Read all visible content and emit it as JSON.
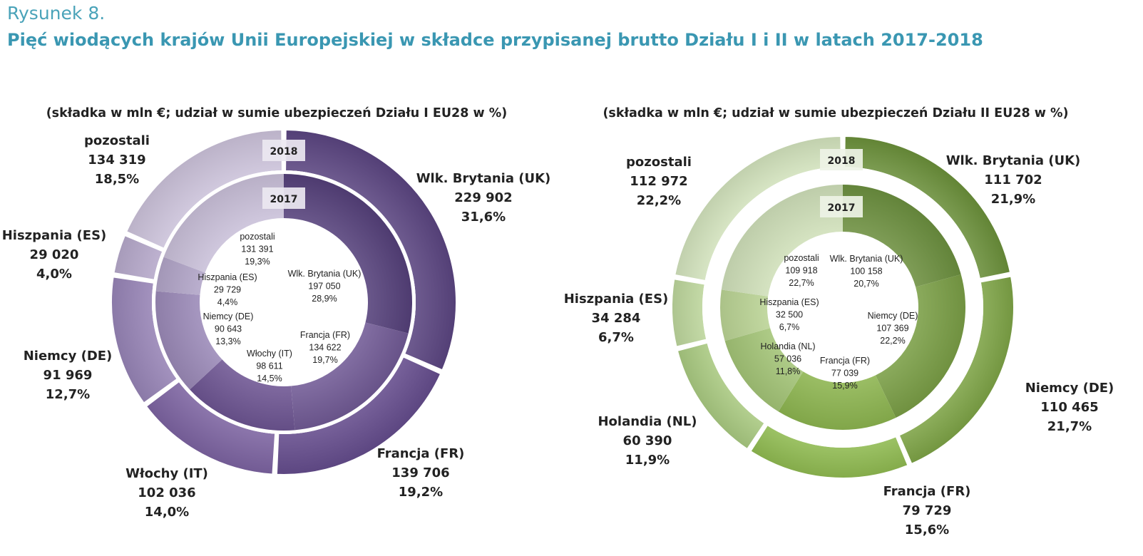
{
  "figure": {
    "label": "Rysunek 8.",
    "title": "Pięć wiodących krajów Unii Europejskiej w składce przypisanej brutto Działu I i II w latach 2017-2018"
  },
  "chart_data": [
    {
      "type": "pie",
      "subtitle": "(składka w mln €; udział w sumie ubezpieczeń Działu I EU28 w %)",
      "rings": [
        {
          "year": "2018",
          "ring": "outer",
          "slices": [
            {
              "name": "Wlk. Brytania (UK)",
              "value": "229 902",
              "share": "31,6%",
              "color": "#5a4580"
            },
            {
              "name": "Francja (FR)",
              "value": "139 706",
              "share": "19,2%",
              "color": "#644c8c"
            },
            {
              "name": "Włochy (IT)",
              "value": "102 036",
              "share": "14,0%",
              "color": "#7c63a1"
            },
            {
              "name": "Niemcy (DE)",
              "value": "91 969",
              "share": "12,7%",
              "color": "#9683b5"
            },
            {
              "name": "Hiszpania (ES)",
              "value": "29 020",
              "share": "4,0%",
              "color": "#b5a8ca"
            },
            {
              "name": "pozostali",
              "value": "134 319",
              "share": "18,5%",
              "color": "#cbc2d9"
            }
          ]
        },
        {
          "year": "2017",
          "ring": "inner",
          "slices": [
            {
              "name": "Wlk. Brytania (UK)",
              "value": "197 050",
              "share": "28,9%",
              "color": "#55407a"
            },
            {
              "name": "Francja (FR)",
              "value": "134 622",
              "share": "19,7%",
              "color": "#715a95"
            },
            {
              "name": "Włochy (IT)",
              "value": "98 611",
              "share": "14,5%",
              "color": "#6d5592"
            },
            {
              "name": "Niemcy (DE)",
              "value": "90 643",
              "share": "13,3%",
              "color": "#9a89b7"
            },
            {
              "name": "Hiszpania (ES)",
              "value": "29 729",
              "share": "4,4%",
              "color": "#b1a4c7"
            },
            {
              "name": "pozostali",
              "value": "131 391",
              "share": "19,3%",
              "color": "#c9bfd8"
            }
          ]
        }
      ]
    },
    {
      "type": "pie",
      "subtitle": "(składka w mln €; udział w sumie ubezpieczeń Działu II EU28 w %)",
      "rings": [
        {
          "year": "2018",
          "ring": "outer",
          "slices": [
            {
              "name": "Wlk. Brytania (UK)",
              "value": "111 702",
              "share": "21,9%",
              "color": "#6a8f3a"
            },
            {
              "name": "Niemcy (DE)",
              "value": "110 465",
              "share": "21,7%",
              "color": "#7da346"
            },
            {
              "name": "Francja (FR)",
              "value": "79 729",
              "share": "15,6%",
              "color": "#8fba50"
            },
            {
              "name": "Holandia (NL)",
              "value": "60 390",
              "share": "11,9%",
              "color": "#a9c980"
            },
            {
              "name": "Hiszpania (ES)",
              "value": "34 284",
              "share": "6,7%",
              "color": "#bcd59b"
            },
            {
              "name": "pozostali",
              "value": "112 972",
              "share": "22,2%",
              "color": "#d2e2bc"
            }
          ]
        },
        {
          "year": "2017",
          "ring": "inner",
          "slices": [
            {
              "name": "Wlk. Brytania (UK)",
              "value": "100 158",
              "share": "20,7%",
              "color": "#6c8f3f"
            },
            {
              "name": "Niemcy (DE)",
              "value": "107 369",
              "share": "22,2%",
              "color": "#7a9e46"
            },
            {
              "name": "Francja (FR)",
              "value": "77 039",
              "share": "15,9%",
              "color": "#8cb44f"
            },
            {
              "name": "Holandia (NL)",
              "value": "57 036",
              "share": "11,8%",
              "color": "#a3c477"
            },
            {
              "name": "Hiszpania (ES)",
              "value": "32 500",
              "share": "6,7%",
              "color": "#bad394"
            },
            {
              "name": "pozostali",
              "value": "109 918",
              "share": "22,7%",
              "color": "#cfdfb9"
            }
          ]
        }
      ]
    }
  ]
}
